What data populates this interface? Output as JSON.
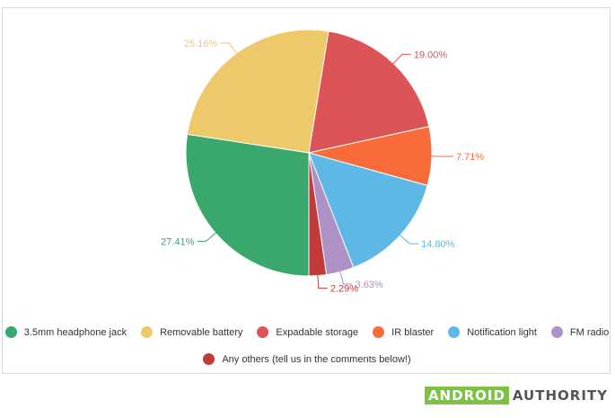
{
  "chart_data": {
    "type": "pie",
    "title": "",
    "slices": [
      {
        "label": "3.5mm headphone jack",
        "value": 27.41,
        "color": "#3aa76d",
        "data_label": "27.41%"
      },
      {
        "label": "Removable battery",
        "value": 25.16,
        "color": "#eec96a",
        "data_label": "25.16%"
      },
      {
        "label": "Expadable storage",
        "value": 19.0,
        "color": "#dd5457",
        "data_label": "19.00%"
      },
      {
        "label": "IR blaster",
        "value": 7.71,
        "color": "#f96c3a",
        "data_label": "7.71%"
      },
      {
        "label": "Notification light",
        "value": 14.8,
        "color": "#5db8e6",
        "data_label": "14.80%"
      },
      {
        "label": "FM radio",
        "value": 3.63,
        "color": "#ae91c6",
        "data_label": "3.63%"
      },
      {
        "label": "Any others (tell us in the comments below!)",
        "value": 2.29,
        "color": "#c23a3a",
        "data_label": "2.29%"
      }
    ],
    "legend_position": "bottom"
  },
  "legend": {
    "row1": [
      {
        "label": "3.5mm headphone jack",
        "color": "#3aa76d"
      },
      {
        "label": "Removable battery",
        "color": "#eec96a"
      },
      {
        "label": "Expadable storage",
        "color": "#dd5457"
      },
      {
        "label": "IR blaster",
        "color": "#f96c3a"
      },
      {
        "label": "Notification light",
        "color": "#5db8e6"
      },
      {
        "label": "FM radio",
        "color": "#ae91c6"
      }
    ],
    "row2": [
      {
        "label": "Any others (tell us in the comments below!)",
        "color": "#c23a3a"
      }
    ]
  },
  "brand": {
    "part1": "ANDROID",
    "part2": "AUTHORITY",
    "accent": "#7ec242"
  }
}
